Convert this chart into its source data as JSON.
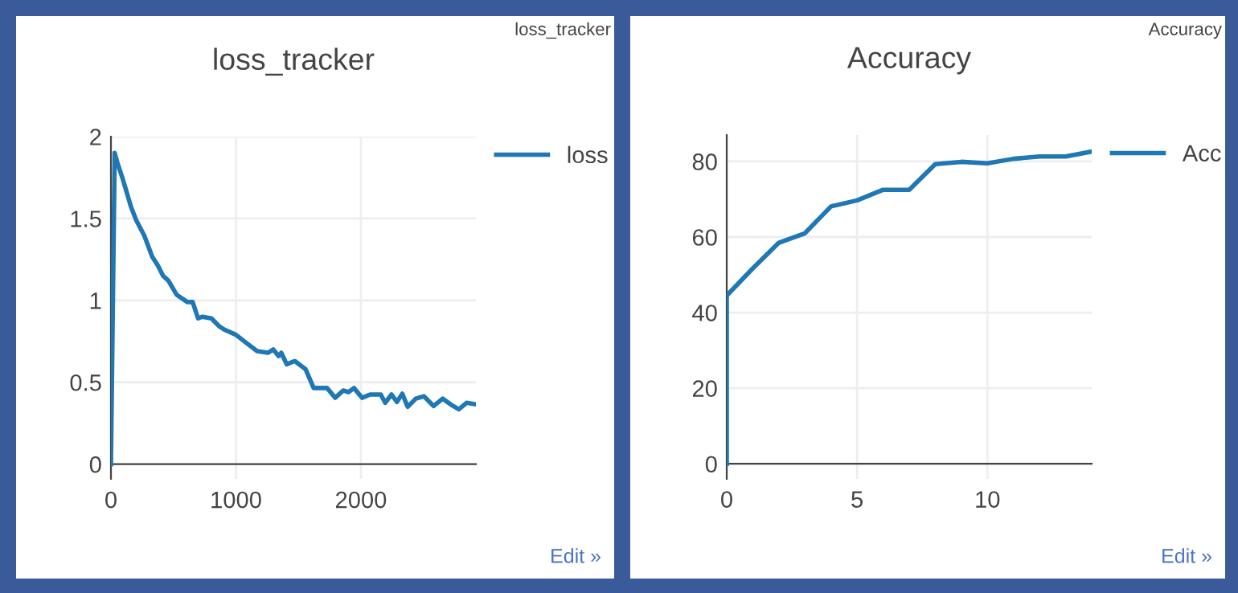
{
  "chart_data": [
    {
      "type": "line",
      "title": "loss_tracker",
      "annotations": [
        "loss_tracker",
        "Edit »"
      ],
      "legend": "top right",
      "grid": true,
      "marker": "none",
      "line_style": "solid",
      "xlim": [
        0,
        2920
      ],
      "ylim": [
        -0.09,
        2.0
      ],
      "xticks": [
        0,
        1000,
        2000
      ],
      "yticks": [
        0,
        0.5,
        1,
        1.5,
        2
      ],
      "series": [
        {
          "name": "loss",
          "color": "#1f77b4",
          "x": [
            0,
            30,
            52,
            95,
            159,
            202,
            267,
            331,
            374,
            417,
            460,
            525,
            611,
            654,
            697,
            731,
            804,
            869,
            912,
            1000,
            1084,
            1170,
            1256,
            1299,
            1342,
            1363,
            1406,
            1471,
            1557,
            1622,
            1729,
            1794,
            1858,
            1901,
            1944,
            2009,
            2073,
            2159,
            2194,
            2245,
            2288,
            2331,
            2374,
            2439,
            2503,
            2581,
            2654,
            2718,
            2783,
            2847,
            2920
          ],
          "values": [
            0,
            1.9,
            1.84,
            1.74,
            1.575,
            1.49,
            1.395,
            1.265,
            1.215,
            1.15,
            1.12,
            1.035,
            0.99,
            0.99,
            0.89,
            0.9,
            0.89,
            0.84,
            0.82,
            0.79,
            0.74,
            0.69,
            0.68,
            0.7,
            0.66,
            0.68,
            0.61,
            0.63,
            0.58,
            0.465,
            0.465,
            0.405,
            0.45,
            0.44,
            0.465,
            0.405,
            0.425,
            0.425,
            0.375,
            0.425,
            0.38,
            0.43,
            0.35,
            0.4,
            0.415,
            0.355,
            0.4,
            0.365,
            0.335,
            0.375,
            0.365
          ]
        }
      ]
    },
    {
      "type": "line",
      "title": "Accuracy",
      "annotations": [
        "Accuracy",
        "Edit »"
      ],
      "legend": "top right",
      "grid": true,
      "marker": "none",
      "line_style": "solid",
      "xlim": [
        0,
        14
      ],
      "ylim": [
        -4,
        87
      ],
      "xticks": [
        0,
        5,
        10
      ],
      "yticks": [
        0,
        20,
        40,
        60,
        80
      ],
      "series": [
        {
          "name": "Acc",
          "color": "#1f77b4",
          "x": [
            0,
            0,
            1,
            2,
            3,
            4,
            5,
            6,
            7,
            8,
            9,
            10,
            11,
            12,
            13,
            14
          ],
          "values": [
            0,
            44.5,
            51.7,
            58.5,
            61,
            68.1,
            69.7,
            72.5,
            72.5,
            79.3,
            79.9,
            79.5,
            80.7,
            81.3,
            81.3,
            82.6
          ]
        }
      ]
    }
  ]
}
